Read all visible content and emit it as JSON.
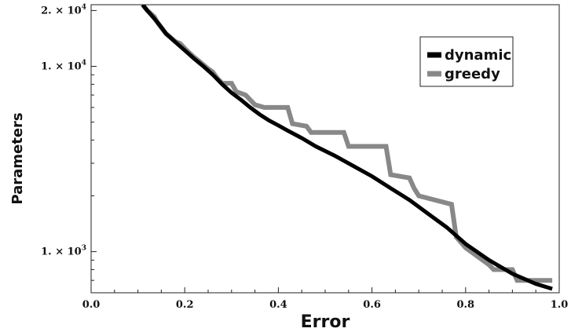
{
  "chart_data": {
    "type": "line",
    "xlabel": "Error",
    "ylabel": "Parameters",
    "xlim": [
      0.0,
      1.0
    ],
    "ylim": [
      600,
      21500
    ],
    "y_scale": "log",
    "grid": false,
    "legend_position": "top-right",
    "x_ticks": [
      {
        "value": 0.0,
        "label": "0.0"
      },
      {
        "value": 0.2,
        "label": "0.2"
      },
      {
        "value": 0.4,
        "label": "0.4"
      },
      {
        "value": 0.6,
        "label": "0.6"
      },
      {
        "value": 0.8,
        "label": "0.8"
      },
      {
        "value": 1.0,
        "label": "1.0"
      }
    ],
    "y_ticks": [
      {
        "value": 1000,
        "mantissa": "1.",
        "base": "10",
        "exp": "3"
      },
      {
        "value": 10000,
        "mantissa": "1.",
        "base": "10",
        "exp": "4"
      },
      {
        "value": 20000,
        "mantissa": "2.",
        "base": "10",
        "exp": "4"
      }
    ],
    "series": [
      {
        "name": "dynamic",
        "color": "#000000",
        "points": [
          [
            0.11,
            21500
          ],
          [
            0.12,
            20000
          ],
          [
            0.14,
            17500
          ],
          [
            0.16,
            15000
          ],
          [
            0.18,
            13500
          ],
          [
            0.2,
            12200
          ],
          [
            0.22,
            11000
          ],
          [
            0.24,
            10000
          ],
          [
            0.26,
            9000
          ],
          [
            0.28,
            8000
          ],
          [
            0.3,
            7200
          ],
          [
            0.32,
            6600
          ],
          [
            0.34,
            6000
          ],
          [
            0.36,
            5500
          ],
          [
            0.38,
            5100
          ],
          [
            0.4,
            4800
          ],
          [
            0.42,
            4500
          ],
          [
            0.45,
            4100
          ],
          [
            0.48,
            3700
          ],
          [
            0.52,
            3300
          ],
          [
            0.56,
            2900
          ],
          [
            0.6,
            2550
          ],
          [
            0.64,
            2200
          ],
          [
            0.68,
            1900
          ],
          [
            0.72,
            1600
          ],
          [
            0.76,
            1350
          ],
          [
            0.8,
            1100
          ],
          [
            0.85,
            900
          ],
          [
            0.9,
            760
          ],
          [
            0.95,
            670
          ],
          [
            0.985,
            630
          ]
        ]
      },
      {
        "name": "greedy",
        "color": "#888888",
        "points": [
          [
            0.11,
            21500
          ],
          [
            0.12,
            20000
          ],
          [
            0.13,
            19000
          ],
          [
            0.135,
            18500
          ],
          [
            0.14,
            17500
          ],
          [
            0.15,
            16200
          ],
          [
            0.16,
            15000
          ],
          [
            0.17,
            14300
          ],
          [
            0.18,
            13600
          ],
          [
            0.19,
            13300
          ],
          [
            0.2,
            12500
          ],
          [
            0.21,
            11800
          ],
          [
            0.22,
            11200
          ],
          [
            0.23,
            10700
          ],
          [
            0.24,
            10200
          ],
          [
            0.25,
            9700
          ],
          [
            0.26,
            9300
          ],
          [
            0.27,
            8600
          ],
          [
            0.28,
            8100
          ],
          [
            0.3,
            8100
          ],
          [
            0.31,
            7300
          ],
          [
            0.33,
            7000
          ],
          [
            0.35,
            6200
          ],
          [
            0.37,
            6000
          ],
          [
            0.42,
            6000
          ],
          [
            0.43,
            4900
          ],
          [
            0.46,
            4750
          ],
          [
            0.47,
            4400
          ],
          [
            0.5,
            4400
          ],
          [
            0.54,
            4400
          ],
          [
            0.55,
            3700
          ],
          [
            0.63,
            3700
          ],
          [
            0.64,
            2600
          ],
          [
            0.68,
            2500
          ],
          [
            0.69,
            2200
          ],
          [
            0.7,
            2000
          ],
          [
            0.77,
            1800
          ],
          [
            0.78,
            1200
          ],
          [
            0.8,
            1050
          ],
          [
            0.85,
            850
          ],
          [
            0.86,
            800
          ],
          [
            0.9,
            800
          ],
          [
            0.91,
            700
          ],
          [
            0.985,
            700
          ]
        ]
      }
    ]
  }
}
